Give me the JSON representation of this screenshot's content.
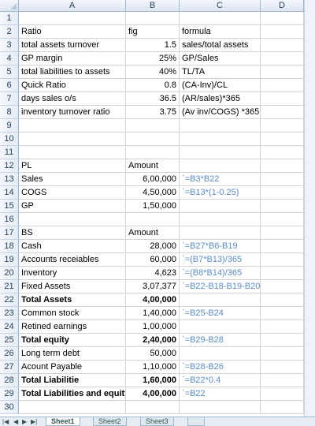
{
  "columns": [
    "A",
    "B",
    "C",
    "D"
  ],
  "rows": [
    {
      "n": "1",
      "a": "",
      "b": "",
      "c": ""
    },
    {
      "n": "2",
      "a": "Ratio",
      "b": "fig",
      "c": "formula",
      "bAlign": "left"
    },
    {
      "n": "3",
      "a": "total assets turnover",
      "b": "1.5",
      "c": "sales/total assets"
    },
    {
      "n": "4",
      "a": "GP margin",
      "b": "25%",
      "c": "GP/Sales"
    },
    {
      "n": "5",
      "a": "total liabilities to assets",
      "b": "40%",
      "c": "TL/TA"
    },
    {
      "n": "6",
      "a": "Quick Ratio",
      "b": "0.8",
      "c": "(CA-Inv)/CL"
    },
    {
      "n": "7",
      "a": "days sales o/s",
      "b": "36.5",
      "c": "(AR/sales)*365"
    },
    {
      "n": "8",
      "a": "inventory turnover ratio",
      "b": "3.75",
      "c": "(Av inv/COGS) *365"
    },
    {
      "n": "9",
      "a": "",
      "b": "",
      "c": ""
    },
    {
      "n": "10",
      "a": "",
      "b": "",
      "c": ""
    },
    {
      "n": "11",
      "a": "",
      "b": "",
      "c": ""
    },
    {
      "n": "12",
      "a": "PL",
      "b": "Amount",
      "c": "",
      "bAlign": "left"
    },
    {
      "n": "13",
      "a": "Sales",
      "b": "6,00,000",
      "c": "`=B3*B22",
      "cBlue": true
    },
    {
      "n": "14",
      "a": "COGS",
      "b": "4,50,000",
      "c": "`=B13*(1-0.25)",
      "cBlue": true
    },
    {
      "n": "15",
      "a": "GP",
      "b": "1,50,000",
      "c": ""
    },
    {
      "n": "16",
      "a": "",
      "b": "",
      "c": ""
    },
    {
      "n": "17",
      "a": "BS",
      "b": "Amount",
      "c": "",
      "bAlign": "left"
    },
    {
      "n": "18",
      "a": "Cash",
      "b": "28,000",
      "c": "`=B27*B6-B19",
      "cBlue": true
    },
    {
      "n": "19",
      "a": "Accounts receiables",
      "b": "60,000",
      "c": "`=(B7*B13)/365",
      "cBlue": true
    },
    {
      "n": "20",
      "a": "Inventory",
      "b": "4,623",
      "c": "`=(B8*B14)/365",
      "cBlue": true
    },
    {
      "n": "21",
      "a": "Fixed Assets",
      "b": "3,07,377",
      "c": "`=B22-B18-B19-B20",
      "cBlue": true
    },
    {
      "n": "22",
      "a": "Total Assets",
      "b": "4,00,000",
      "c": "",
      "bold": true
    },
    {
      "n": "23",
      "a": "Common stock",
      "b": "1,40,000",
      "c": "`=B25-B24",
      "cBlue": true
    },
    {
      "n": "24",
      "a": "Retined earnings",
      "b": "1,00,000",
      "c": ""
    },
    {
      "n": "25",
      "a": "Total equity",
      "b": "2,40,000",
      "c": "`=B29-B28",
      "cBlue": true,
      "bold": true
    },
    {
      "n": "26",
      "a": "Long term debt",
      "b": "50,000",
      "c": ""
    },
    {
      "n": "27",
      "a": "Acount Payable",
      "b": "1,10,000",
      "c": "`=B28-B26",
      "cBlue": true
    },
    {
      "n": "28",
      "a": "Total Liabilitie",
      "b": "1,60,000",
      "c": "`=B22*0.4",
      "cBlue": true,
      "bold": true
    },
    {
      "n": "29",
      "a": "Total Liabilities and equity",
      "b": "4,00,000",
      "c": "`=B22",
      "cBlue": true,
      "bold": true
    },
    {
      "n": "30",
      "a": "",
      "b": "",
      "c": ""
    }
  ],
  "tabs": [
    "Sheet1",
    "Sheet2",
    "Sheet3"
  ],
  "activeTab": "Sheet1"
}
